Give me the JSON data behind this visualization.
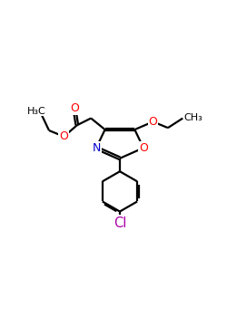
{
  "bg_color": "#ffffff",
  "atom_colors": {
    "O": "#ff0000",
    "N": "#0000cd",
    "Cl": "#aa00aa",
    "C": "#000000"
  },
  "bond_color": "#000000",
  "bond_width": 1.6,
  "font_size_atom": 8.5
}
